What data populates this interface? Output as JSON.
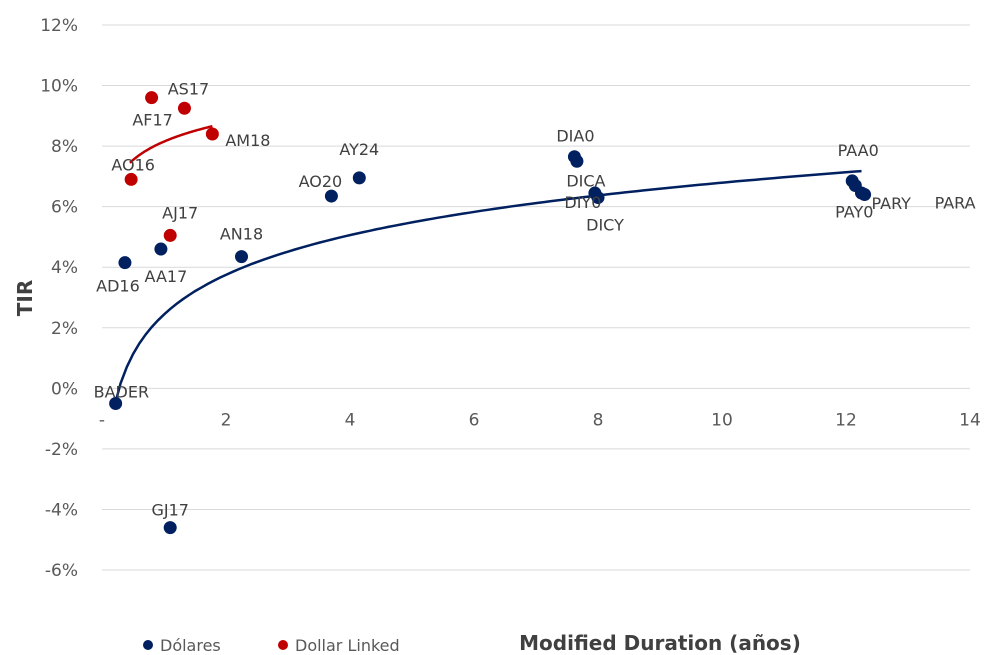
{
  "chart_data": {
    "type": "scatter",
    "xlabel": "Modified Duration (años)",
    "ylabel": "TIR",
    "xlim": [
      0,
      14
    ],
    "ylim": [
      -6,
      12
    ],
    "x_ticks": [
      0,
      2,
      4,
      6,
      8,
      10,
      12,
      14
    ],
    "x_tick_labels": [
      "-",
      "2",
      "4",
      "6",
      "8",
      "10",
      "12",
      "14"
    ],
    "y_ticks": [
      -6,
      -4,
      -2,
      0,
      2,
      4,
      6,
      8,
      10,
      12
    ],
    "y_tick_labels": [
      "-6%",
      "-4%",
      "-2%",
      "0%",
      "2%",
      "4%",
      "6%",
      "8%",
      "10%",
      "12%"
    ],
    "grid": {
      "horizontal": true,
      "vertical": false
    },
    "legend_position": "bottom-left",
    "series": [
      {
        "name": "Dólares",
        "color": "#002060",
        "points": [
          {
            "label": "BADER",
            "x": 0.22,
            "y": -0.5
          },
          {
            "label": "GJ17",
            "x": 1.1,
            "y": -4.6
          },
          {
            "label": "AD16",
            "x": 0.37,
            "y": 4.15
          },
          {
            "label": "AA17",
            "x": 0.95,
            "y": 4.6
          },
          {
            "label": "AN18",
            "x": 2.25,
            "y": 4.35
          },
          {
            "label": "AO20",
            "x": 3.7,
            "y": 6.35
          },
          {
            "label": "AY24",
            "x": 4.15,
            "y": 6.95
          },
          {
            "label": "DIA0",
            "x": 7.62,
            "y": 7.65
          },
          {
            "label": "DICA",
            "x": 7.66,
            "y": 7.5
          },
          {
            "label": "DIY0",
            "x": 7.95,
            "y": 6.45
          },
          {
            "label": "DICY",
            "x": 8.0,
            "y": 6.3
          },
          {
            "label": "PAA0",
            "x": 12.1,
            "y": 6.85
          },
          {
            "label": "PAY0",
            "x": 12.15,
            "y": 6.7
          },
          {
            "label": "PARY",
            "x": 12.25,
            "y": 6.45
          },
          {
            "label": "PARA",
            "x": 12.3,
            "y": 6.4
          }
        ],
        "trendline": {
          "type": "logarithmic",
          "x_range": [
            0.2,
            12.25
          ],
          "a": 2.44,
          "b": 1.89
        }
      },
      {
        "name": "Dollar Linked",
        "color": "#c00000",
        "points": [
          {
            "label": "AO16",
            "x": 0.47,
            "y": 6.9
          },
          {
            "label": "AF17",
            "x": 0.8,
            "y": 9.6
          },
          {
            "label": "AS17",
            "x": 1.33,
            "y": 9.25
          },
          {
            "label": "AJ17",
            "x": 1.1,
            "y": 5.05
          },
          {
            "label": "AM18",
            "x": 1.78,
            "y": 8.4
          }
        ],
        "trendline": {
          "type": "logarithmic",
          "x_range": [
            0.45,
            1.78
          ],
          "a": 8.15,
          "b": 0.88
        }
      }
    ]
  }
}
